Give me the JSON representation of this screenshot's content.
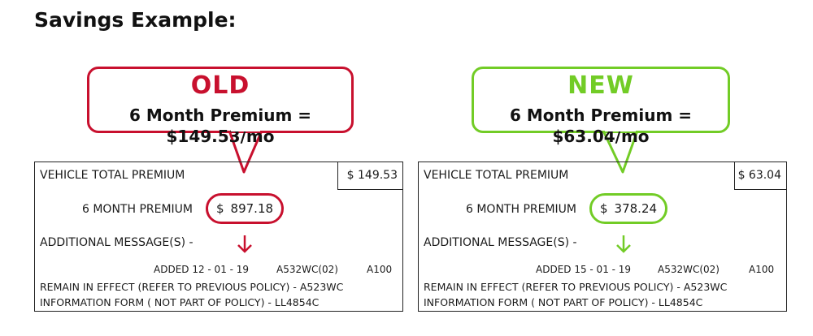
{
  "title": "Savings Example:",
  "colors": {
    "old": "#c8102e",
    "new": "#72cc26",
    "border": "#222222"
  },
  "old": {
    "label": "OLD",
    "callout_premium": "6 Month Premium = $149.53/mo",
    "vehicle_total_label": "VEHICLE TOTAL PREMIUM",
    "vehicle_total_value": "$ 149.53",
    "six_month_label": "6 MONTH PREMIUM",
    "six_month_currency": "$",
    "six_month_value": "897.18",
    "additional_label": "ADDITIONAL MESSAGE(S) -",
    "added": "ADDED 12 - 01 - 19",
    "code": "A532WC(02)",
    "code2": "A100",
    "line1": "REMAIN IN EFFECT (REFER TO PREVIOUS POLICY) - A523WC",
    "line2": "INFORMATION FORM ( NOT PART OF POLICY) - LL4854C"
  },
  "new": {
    "label": "NEW",
    "callout_premium": "6 Month Premium = $63.04/mo",
    "vehicle_total_label": "VEHICLE TOTAL PREMIUM",
    "vehicle_total_value": "$ 63.04",
    "six_month_label": "6 MONTH PREMIUM",
    "six_month_currency": "$",
    "six_month_value": "378.24",
    "additional_label": "ADDITIONAL MESSAGE(S) -",
    "added": "ADDED 15 - 01 - 19",
    "code": "A532WC(02)",
    "code2": "A100",
    "line1": "REMAIN IN EFFECT (REFER TO PREVIOUS POLICY) - A523WC",
    "line2": "INFORMATION FORM ( NOT PART OF POLICY) - LL4854C"
  }
}
